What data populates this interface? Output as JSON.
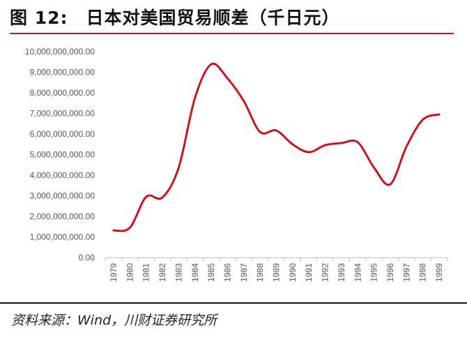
{
  "header": {
    "figure_label": "图 12:",
    "title": "日本对美国贸易顺差（千日元）"
  },
  "footer": {
    "source": "资料来源：Wind，川财证券研究所"
  },
  "chart_data": {
    "type": "line",
    "title": "日本对美国贸易顺差（千日元）",
    "x": [
      "1979",
      "1980",
      "1981",
      "1982",
      "1983",
      "1984",
      "1985",
      "1986",
      "1987",
      "1988",
      "1989",
      "1990",
      "1991",
      "1992",
      "1993",
      "1994",
      "1995",
      "1996",
      "1997",
      "1998",
      "1999"
    ],
    "series": [
      {
        "values": [
          1320000000,
          1450000000,
          2950000000,
          2920000000,
          4370000000,
          7760000000,
          9390000000,
          8700000000,
          7600000000,
          6100000000,
          6170000000,
          5500000000,
          5120000000,
          5460000000,
          5560000000,
          5600000000,
          4370000000,
          3560000000,
          5400000000,
          6700000000,
          6950000000
        ],
        "color": "#c8141e"
      }
    ],
    "yticks": [
      "0.00",
      "1,000,000,000.00",
      "2,000,000,000.00",
      "3,000,000,000.00",
      "4,000,000,000.00",
      "5,000,000,000.00",
      "6,000,000,000.00",
      "7,000,000,000.00",
      "8,000,000,000.00",
      "9,000,000,000.00",
      "10,000,000,000.00"
    ],
    "ylim": [
      0,
      10000000000
    ],
    "grid": false,
    "smooth": true
  }
}
